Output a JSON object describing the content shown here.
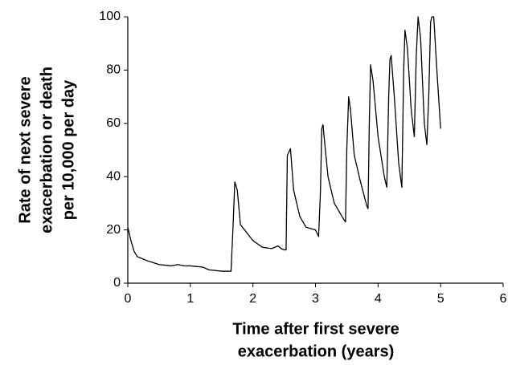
{
  "chart_data": {
    "type": "line",
    "x_label": [
      "Time after first severe",
      "exacerbation (years)"
    ],
    "y_label": [
      "Rate of next severe",
      "exacerbation or death",
      "per 10,000 per day"
    ],
    "x": [
      0,
      0.05,
      0.1,
      0.15,
      0.3,
      0.5,
      0.7,
      0.8,
      0.9,
      1.0,
      1.2,
      1.3,
      1.5,
      1.65,
      1.68,
      1.71,
      1.75,
      1.8,
      1.9,
      2.0,
      2.15,
      2.3,
      2.4,
      2.45,
      2.5,
      2.53,
      2.55,
      2.6,
      2.65,
      2.75,
      2.85,
      3.0,
      3.05,
      3.08,
      3.1,
      3.12,
      3.15,
      3.2,
      3.3,
      3.45,
      3.48,
      3.5,
      3.53,
      3.56,
      3.62,
      3.72,
      3.82,
      3.84,
      3.86,
      3.88,
      3.92,
      4.0,
      4.1,
      4.14,
      4.17,
      4.19,
      4.21,
      4.26,
      4.33,
      4.38,
      4.41,
      4.43,
      4.47,
      4.53,
      4.58,
      4.61,
      4.64,
      4.68,
      4.74,
      4.78,
      4.81,
      4.84,
      4.86,
      4.89,
      4.94,
      5.0
    ],
    "series": [
      {
        "color": "#000000",
        "values": [
          21,
          16,
          12,
          10,
          8.5,
          7,
          6.5,
          7,
          6.5,
          6.5,
          6,
          5,
          4.5,
          4.5,
          20,
          38,
          35,
          22,
          19,
          16,
          13.5,
          13,
          14,
          13,
          12.5,
          12.5,
          48,
          50.5,
          35,
          25,
          21,
          20,
          17.5,
          35,
          58,
          59.5,
          52,
          40,
          30,
          24,
          23,
          50,
          70,
          65,
          48,
          38,
          29,
          28,
          60,
          82,
          76,
          55,
          40,
          36,
          70,
          84,
          85.5,
          70,
          45,
          36,
          80,
          95,
          88,
          65,
          55,
          85,
          100,
          92,
          60,
          52,
          70,
          98,
          100,
          100,
          80,
          58
        ]
      }
    ],
    "xlim": [
      0,
      6
    ],
    "xticks": [
      0,
      1,
      2,
      3,
      4,
      5,
      6
    ],
    "ylim": [
      0,
      100
    ],
    "yticks": [
      0,
      20,
      40,
      60,
      80,
      100
    ],
    "grid": false
  }
}
